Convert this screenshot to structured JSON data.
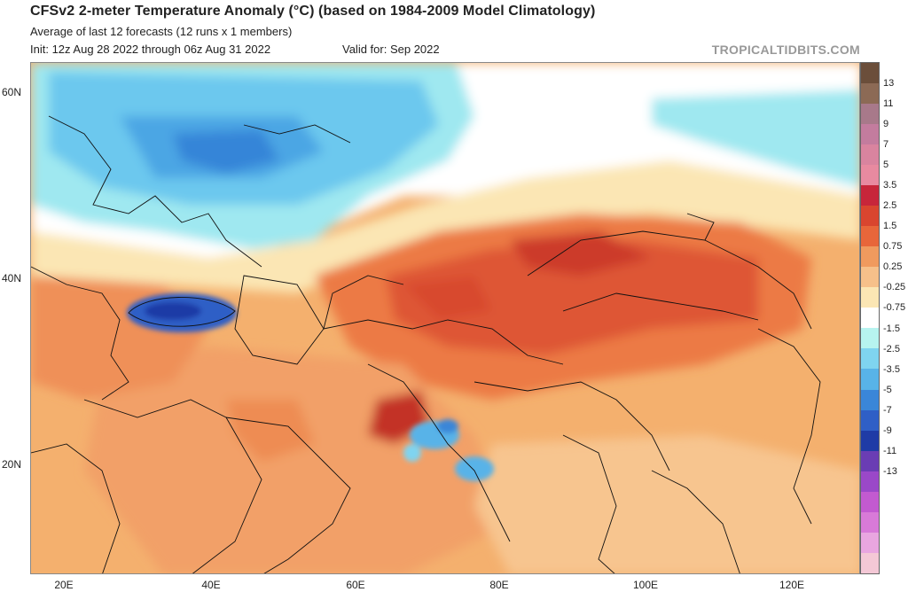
{
  "header": {
    "title": "CFSv2 2-meter Temperature Anomaly (°C) (based on 1984-2009 Model Climatology)",
    "subtitle": "Average of last 12 forecasts (12 runs x 1 members)",
    "init": "Init: 12z Aug 28 2022 through 06z Aug 31 2022",
    "valid": "Valid for: Sep 2022",
    "credit": "TROPICALTIDBITS.COM"
  },
  "map": {
    "lat_labels": [
      "60N",
      "40N",
      "20N"
    ],
    "lon_labels": [
      "20E",
      "40E",
      "60E",
      "80E",
      "100E",
      "120E"
    ]
  },
  "colorbar": {
    "labels": [
      "13",
      "11",
      "9",
      "7",
      "5",
      "3.5",
      "2.5",
      "1.5",
      "0.75",
      "0.25",
      "-0.25",
      "-0.75",
      "-1.5",
      "-2.5",
      "-3.5",
      "-5",
      "-7",
      "-9",
      "-11",
      "-13"
    ],
    "colors": [
      "#6b4e3a",
      "#8c6a55",
      "#a8798a",
      "#c37c9e",
      "#d9849f",
      "#e88aa0",
      "#c7263a",
      "#d9452f",
      "#e8663a",
      "#f09a5e",
      "#f6c08a",
      "#fbe6b4",
      "#ffffff",
      "#b7f4f0",
      "#7fd4f0",
      "#58b3e8",
      "#3a86d8",
      "#2f5fc6",
      "#1f3ba6",
      "#6a3db4",
      "#9a48c8",
      "#c25ad0",
      "#d87ad8",
      "#e9a6e0",
      "#f4c8d6"
    ]
  }
}
